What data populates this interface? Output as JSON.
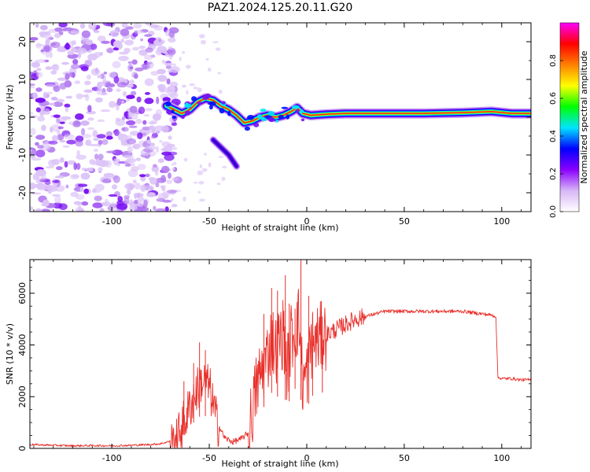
{
  "figure": {
    "title": "PAZ1.2024.125.20.11.G20"
  },
  "chart_data": [
    {
      "type": "heatmap",
      "xlabel": "Height of straight line (km)",
      "ylabel": "Frequency (Hz)",
      "xlim": [
        -142,
        115
      ],
      "ylim": [
        -25,
        25
      ],
      "xticks": [
        -100,
        -50,
        0,
        50,
        100
      ],
      "yticks": [
        -20,
        -10,
        0,
        10,
        20
      ],
      "colorbar": {
        "label": "Normalized spectral amplitude",
        "range": [
          0,
          1
        ],
        "ticks": [
          0.0,
          0.2,
          0.4,
          0.6,
          0.8
        ],
        "colormap": [
          "#ffffff",
          "#d8b6f7",
          "#8a00ff",
          "#0000ff",
          "#00e5ff",
          "#00ff00",
          "#ffff00",
          "#ff8000",
          "#ff0000",
          "#ff00ff"
        ]
      },
      "noise_region": {
        "x_range": [
          -142,
          -72
        ],
        "y_range": [
          -25,
          25
        ],
        "level": 0.15
      },
      "ridge": [
        [
          -72,
          3
        ],
        [
          -68,
          2
        ],
        [
          -64,
          1
        ],
        [
          -60,
          2
        ],
        [
          -56,
          4
        ],
        [
          -52,
          5
        ],
        [
          -48,
          4.5
        ],
        [
          -44,
          3
        ],
        [
          -40,
          2
        ],
        [
          -36,
          0.5
        ],
        [
          -32,
          -1.5
        ],
        [
          -28,
          -1
        ],
        [
          -24,
          0
        ],
        [
          -20,
          0.5
        ],
        [
          -16,
          0
        ],
        [
          -12,
          0.5
        ],
        [
          -8,
          1.5
        ],
        [
          -5,
          2.5
        ],
        [
          -2,
          1
        ],
        [
          2,
          0.5
        ],
        [
          10,
          0.8
        ],
        [
          20,
          1
        ],
        [
          40,
          1
        ],
        [
          60,
          1
        ],
        [
          80,
          1.2
        ],
        [
          95,
          1.5
        ],
        [
          105,
          1
        ],
        [
          115,
          1
        ]
      ],
      "secondary_ridge": [
        [
          -48,
          -6
        ],
        [
          -44,
          -8
        ],
        [
          -40,
          -10
        ],
        [
          -36,
          -13
        ]
      ]
    },
    {
      "type": "line",
      "xlabel": "Height of straight line (km)",
      "ylabel": "SNR (10 * v/v)",
      "xlim": [
        -142,
        115
      ],
      "ylim": [
        0,
        7300
      ],
      "xticks": [
        -100,
        -50,
        0,
        50,
        100
      ],
      "yticks": [
        0,
        2000,
        4000,
        6000
      ],
      "series": [
        {
          "color": "#e8302b",
          "x": [
            -142,
            -130,
            -120,
            -110,
            -100,
            -90,
            -80,
            -75,
            -70,
            -66,
            -62,
            -58,
            -54,
            -50,
            -46,
            -42,
            -38,
            -34,
            -30,
            -28,
            -26,
            -24,
            -22,
            -20,
            -18,
            -16,
            -14,
            -12,
            -10,
            -8,
            -6,
            -4,
            -2,
            0,
            2,
            5,
            10,
            15,
            20,
            25,
            30,
            35,
            40,
            45,
            50,
            55,
            60,
            65,
            70,
            75,
            80,
            85,
            90,
            95,
            97,
            98,
            100,
            105,
            110,
            115
          ],
          "y": [
            150,
            120,
            100,
            110,
            100,
            120,
            150,
            180,
            280,
            500,
            1200,
            2000,
            2600,
            2400,
            1000,
            400,
            250,
            350,
            600,
            1400,
            2300,
            2800,
            3200,
            3600,
            4300,
            3800,
            4200,
            4500,
            3000,
            4300,
            4600,
            5000,
            2500,
            2900,
            4000,
            4200,
            4400,
            4600,
            4800,
            5000,
            5100,
            5200,
            5300,
            5300,
            5300,
            5300,
            5300,
            5300,
            5300,
            5300,
            5300,
            5250,
            5200,
            5150,
            5100,
            2750,
            2700,
            2700,
            2650,
            2650
          ],
          "spikes": [
            {
              "x": -63,
              "y": 2600
            },
            {
              "x": -58,
              "y": 3300
            },
            {
              "x": -55,
              "y": 4100
            },
            {
              "x": -52,
              "y": 3800
            },
            {
              "x": -22,
              "y": 5200
            },
            {
              "x": -18,
              "y": 6200
            },
            {
              "x": -15,
              "y": 6100
            },
            {
              "x": -11,
              "y": 6700
            },
            {
              "x": -9,
              "y": 5600
            },
            {
              "x": -6,
              "y": 5400
            },
            {
              "x": -3,
              "y": 7300
            },
            {
              "x": 1,
              "y": 5900
            },
            {
              "x": 3,
              "y": 5200
            },
            {
              "x": 8,
              "y": 5100
            }
          ]
        }
      ]
    }
  ]
}
